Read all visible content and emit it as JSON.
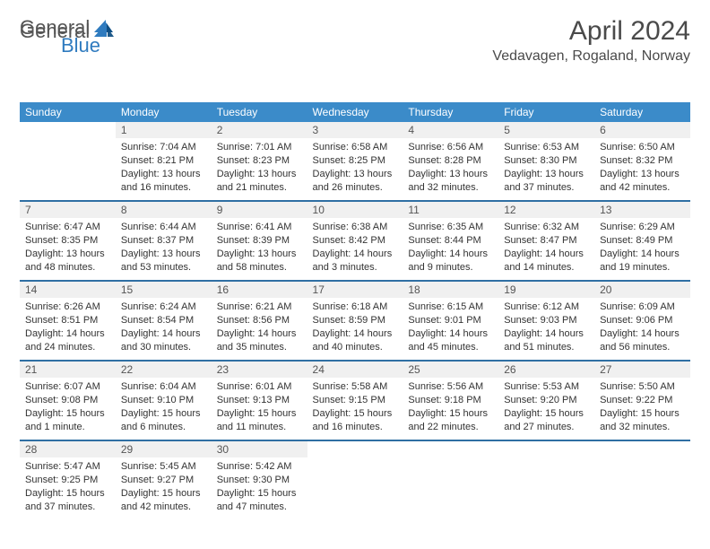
{
  "brand": {
    "general": "General",
    "blue": "Blue"
  },
  "title": "April 2024",
  "location": "Vedavagen, Rogaland, Norway",
  "colors": {
    "header_bg": "#3b8bc9",
    "header_text": "#ffffff",
    "border_top": "#2f6fa3",
    "daynum_bg": "#f0f0f0",
    "text": "#333333",
    "brand_gray": "#555555",
    "brand_blue": "#2f7bbf"
  },
  "weekdays": [
    "Sunday",
    "Monday",
    "Tuesday",
    "Wednesday",
    "Thursday",
    "Friday",
    "Saturday"
  ],
  "weeks": [
    {
      "nums": [
        "",
        "1",
        "2",
        "3",
        "4",
        "5",
        "6"
      ],
      "cells": [
        null,
        {
          "sunrise": "Sunrise: 7:04 AM",
          "sunset": "Sunset: 8:21 PM",
          "day1": "Daylight: 13 hours",
          "day2": "and 16 minutes."
        },
        {
          "sunrise": "Sunrise: 7:01 AM",
          "sunset": "Sunset: 8:23 PM",
          "day1": "Daylight: 13 hours",
          "day2": "and 21 minutes."
        },
        {
          "sunrise": "Sunrise: 6:58 AM",
          "sunset": "Sunset: 8:25 PM",
          "day1": "Daylight: 13 hours",
          "day2": "and 26 minutes."
        },
        {
          "sunrise": "Sunrise: 6:56 AM",
          "sunset": "Sunset: 8:28 PM",
          "day1": "Daylight: 13 hours",
          "day2": "and 32 minutes."
        },
        {
          "sunrise": "Sunrise: 6:53 AM",
          "sunset": "Sunset: 8:30 PM",
          "day1": "Daylight: 13 hours",
          "day2": "and 37 minutes."
        },
        {
          "sunrise": "Sunrise: 6:50 AM",
          "sunset": "Sunset: 8:32 PM",
          "day1": "Daylight: 13 hours",
          "day2": "and 42 minutes."
        }
      ]
    },
    {
      "nums": [
        "7",
        "8",
        "9",
        "10",
        "11",
        "12",
        "13"
      ],
      "cells": [
        {
          "sunrise": "Sunrise: 6:47 AM",
          "sunset": "Sunset: 8:35 PM",
          "day1": "Daylight: 13 hours",
          "day2": "and 48 minutes."
        },
        {
          "sunrise": "Sunrise: 6:44 AM",
          "sunset": "Sunset: 8:37 PM",
          "day1": "Daylight: 13 hours",
          "day2": "and 53 minutes."
        },
        {
          "sunrise": "Sunrise: 6:41 AM",
          "sunset": "Sunset: 8:39 PM",
          "day1": "Daylight: 13 hours",
          "day2": "and 58 minutes."
        },
        {
          "sunrise": "Sunrise: 6:38 AM",
          "sunset": "Sunset: 8:42 PM",
          "day1": "Daylight: 14 hours",
          "day2": "and 3 minutes."
        },
        {
          "sunrise": "Sunrise: 6:35 AM",
          "sunset": "Sunset: 8:44 PM",
          "day1": "Daylight: 14 hours",
          "day2": "and 9 minutes."
        },
        {
          "sunrise": "Sunrise: 6:32 AM",
          "sunset": "Sunset: 8:47 PM",
          "day1": "Daylight: 14 hours",
          "day2": "and 14 minutes."
        },
        {
          "sunrise": "Sunrise: 6:29 AM",
          "sunset": "Sunset: 8:49 PM",
          "day1": "Daylight: 14 hours",
          "day2": "and 19 minutes."
        }
      ]
    },
    {
      "nums": [
        "14",
        "15",
        "16",
        "17",
        "18",
        "19",
        "20"
      ],
      "cells": [
        {
          "sunrise": "Sunrise: 6:26 AM",
          "sunset": "Sunset: 8:51 PM",
          "day1": "Daylight: 14 hours",
          "day2": "and 24 minutes."
        },
        {
          "sunrise": "Sunrise: 6:24 AM",
          "sunset": "Sunset: 8:54 PM",
          "day1": "Daylight: 14 hours",
          "day2": "and 30 minutes."
        },
        {
          "sunrise": "Sunrise: 6:21 AM",
          "sunset": "Sunset: 8:56 PM",
          "day1": "Daylight: 14 hours",
          "day2": "and 35 minutes."
        },
        {
          "sunrise": "Sunrise: 6:18 AM",
          "sunset": "Sunset: 8:59 PM",
          "day1": "Daylight: 14 hours",
          "day2": "and 40 minutes."
        },
        {
          "sunrise": "Sunrise: 6:15 AM",
          "sunset": "Sunset: 9:01 PM",
          "day1": "Daylight: 14 hours",
          "day2": "and 45 minutes."
        },
        {
          "sunrise": "Sunrise: 6:12 AM",
          "sunset": "Sunset: 9:03 PM",
          "day1": "Daylight: 14 hours",
          "day2": "and 51 minutes."
        },
        {
          "sunrise": "Sunrise: 6:09 AM",
          "sunset": "Sunset: 9:06 PM",
          "day1": "Daylight: 14 hours",
          "day2": "and 56 minutes."
        }
      ]
    },
    {
      "nums": [
        "21",
        "22",
        "23",
        "24",
        "25",
        "26",
        "27"
      ],
      "cells": [
        {
          "sunrise": "Sunrise: 6:07 AM",
          "sunset": "Sunset: 9:08 PM",
          "day1": "Daylight: 15 hours",
          "day2": "and 1 minute."
        },
        {
          "sunrise": "Sunrise: 6:04 AM",
          "sunset": "Sunset: 9:10 PM",
          "day1": "Daylight: 15 hours",
          "day2": "and 6 minutes."
        },
        {
          "sunrise": "Sunrise: 6:01 AM",
          "sunset": "Sunset: 9:13 PM",
          "day1": "Daylight: 15 hours",
          "day2": "and 11 minutes."
        },
        {
          "sunrise": "Sunrise: 5:58 AM",
          "sunset": "Sunset: 9:15 PM",
          "day1": "Daylight: 15 hours",
          "day2": "and 16 minutes."
        },
        {
          "sunrise": "Sunrise: 5:56 AM",
          "sunset": "Sunset: 9:18 PM",
          "day1": "Daylight: 15 hours",
          "day2": "and 22 minutes."
        },
        {
          "sunrise": "Sunrise: 5:53 AM",
          "sunset": "Sunset: 9:20 PM",
          "day1": "Daylight: 15 hours",
          "day2": "and 27 minutes."
        },
        {
          "sunrise": "Sunrise: 5:50 AM",
          "sunset": "Sunset: 9:22 PM",
          "day1": "Daylight: 15 hours",
          "day2": "and 32 minutes."
        }
      ]
    },
    {
      "nums": [
        "28",
        "29",
        "30",
        "",
        "",
        "",
        ""
      ],
      "cells": [
        {
          "sunrise": "Sunrise: 5:47 AM",
          "sunset": "Sunset: 9:25 PM",
          "day1": "Daylight: 15 hours",
          "day2": "and 37 minutes."
        },
        {
          "sunrise": "Sunrise: 5:45 AM",
          "sunset": "Sunset: 9:27 PM",
          "day1": "Daylight: 15 hours",
          "day2": "and 42 minutes."
        },
        {
          "sunrise": "Sunrise: 5:42 AM",
          "sunset": "Sunset: 9:30 PM",
          "day1": "Daylight: 15 hours",
          "day2": "and 47 minutes."
        },
        null,
        null,
        null,
        null
      ]
    }
  ]
}
